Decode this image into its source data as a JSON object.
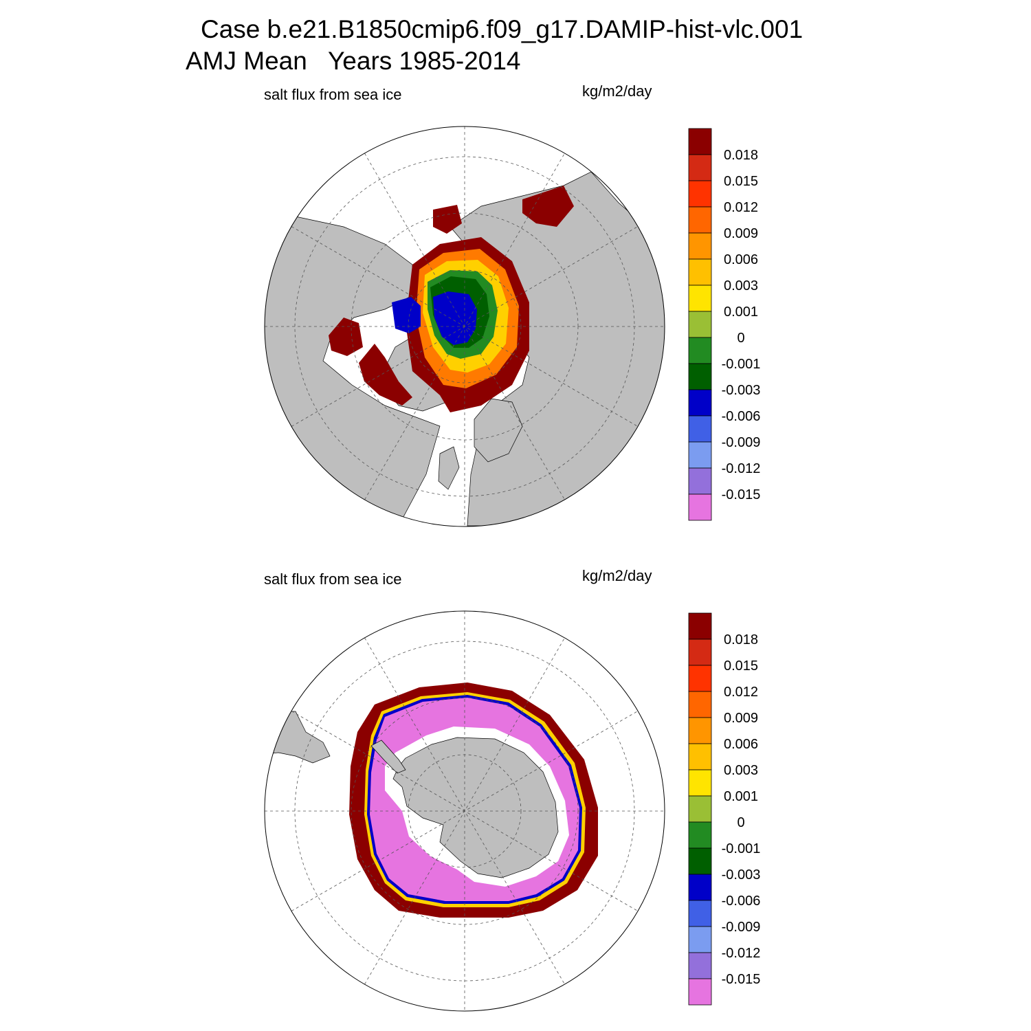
{
  "title_line1": "Case b.e21.B1850cmip6.f09_g17.DAMIP-hist-vlc.001",
  "title_line2": "AMJ Mean   Years 1985-2014",
  "panels": [
    {
      "hemisphere": "north",
      "variable": "salt flux from sea ice",
      "units": "kg/m2/day"
    },
    {
      "hemisphere": "south",
      "variable": "salt flux from sea ice",
      "units": "kg/m2/day"
    }
  ],
  "colorbar": {
    "labels": [
      "0.018",
      "0.015",
      "0.012",
      "0.009",
      "0.006",
      "0.003",
      "0.001",
      "0",
      "-0.001",
      "-0.003",
      "-0.006",
      "-0.009",
      "-0.012",
      "-0.015"
    ],
    "colors": [
      "#8b0000",
      "#d42a14",
      "#ff3300",
      "#ff6600",
      "#ff9500",
      "#ffc000",
      "#ffe400",
      "#9abf35",
      "#228b22",
      "#005f00",
      "#0000c8",
      "#4060e6",
      "#7b9cf0",
      "#9370db",
      "#e674e0"
    ]
  },
  "colors": {
    "land": "#bebebe",
    "ocean": "#ffffff"
  }
}
